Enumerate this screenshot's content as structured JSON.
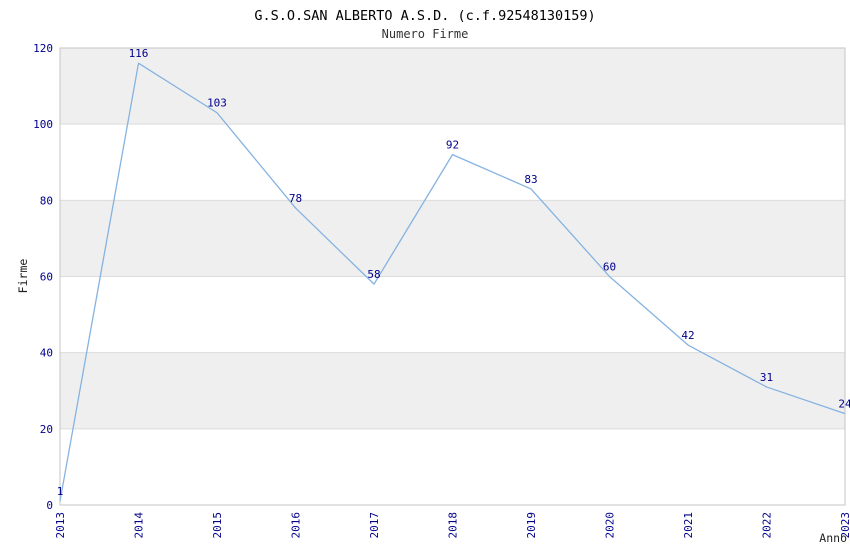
{
  "chart_data": {
    "type": "line",
    "title": "G.S.O.SAN ALBERTO A.S.D. (c.f.92548130159)",
    "subtitle": "Numero Firme",
    "xlabel": "Anno",
    "ylabel": "Firme",
    "categories": [
      "2013",
      "2014",
      "2015",
      "2016",
      "2017",
      "2018",
      "2019",
      "2020",
      "2021",
      "2022",
      "2023"
    ],
    "series": [
      {
        "name": "Firme",
        "values": [
          1,
          116,
          103,
          78,
          58,
          92,
          83,
          60,
          42,
          31,
          24
        ]
      }
    ],
    "ylim": [
      0,
      120
    ],
    "ytick_step": 20,
    "yticks": [
      0,
      20,
      40,
      60,
      80,
      100,
      120
    ],
    "grid": "interlaced-horizontal-bands",
    "legend": "none",
    "colors": {
      "line": "#85b3e1",
      "point_label": "#00008b",
      "tick_label": "#00008b",
      "band": "#efefef",
      "grid_line": "#dcdcdc",
      "plot_border": "#c6c6c6",
      "title_text": "#1a1a1a",
      "axis_title_text": "#222222",
      "background": "#ffffff"
    }
  }
}
